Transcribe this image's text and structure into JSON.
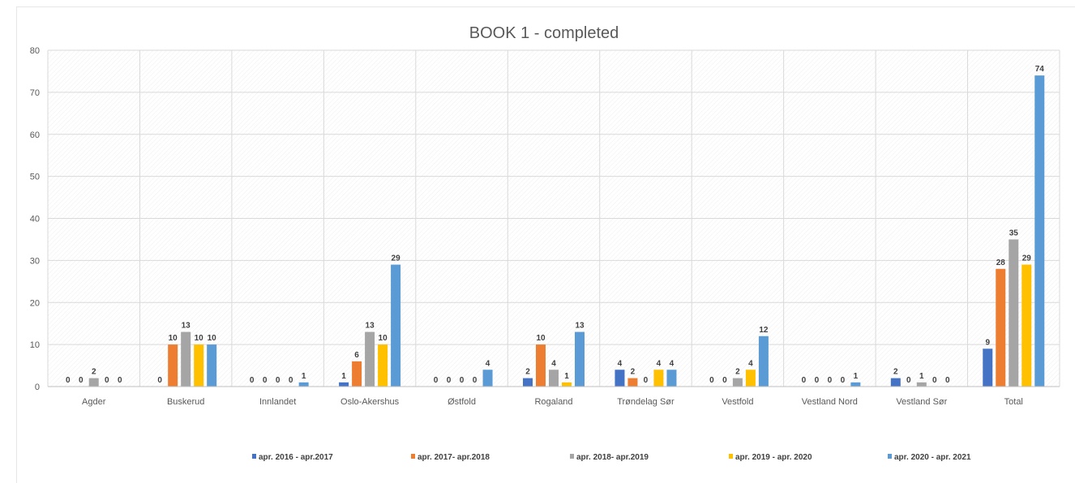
{
  "chart_data": {
    "type": "bar",
    "title": "BOOK 1 - completed",
    "xlabel": "",
    "ylabel": "",
    "ylim": [
      0,
      80
    ],
    "yticks": [
      0,
      10,
      20,
      30,
      40,
      50,
      60,
      70,
      80
    ],
    "grid": true,
    "legend_position": "bottom",
    "categories": [
      "Agder",
      "Buskerud",
      "Innlandet",
      "Oslo-Akershus",
      "Østfold",
      "Rogaland",
      "Trøndelag Sør",
      "Vestfold",
      "Vestland Nord",
      "Vestland Sør",
      "Total"
    ],
    "series": [
      {
        "name": "apr. 2016 - apr.2017",
        "color": "#4472C4",
        "values": [
          0,
          0,
          0,
          1,
          0,
          2,
          4,
          0,
          0,
          2,
          9
        ],
        "labels": [
          "0",
          "0",
          "0",
          "1",
          "0",
          "2",
          "4",
          "0",
          "0",
          "2",
          "9"
        ]
      },
      {
        "name": "apr. 2017- apr.2018",
        "color": "#ED7D31",
        "values": [
          0,
          10,
          0,
          6,
          0,
          10,
          2,
          0,
          0,
          0,
          28
        ],
        "labels": [
          "0",
          "10",
          "0",
          "6",
          "0",
          "10",
          "2",
          "0",
          "0",
          "0",
          "28"
        ]
      },
      {
        "name": "apr. 2018- apr.2019",
        "color": "#A5A5A5",
        "values": [
          2,
          13,
          0,
          13,
          0,
          4,
          0,
          2,
          0,
          1,
          35
        ],
        "labels": [
          "2",
          "13",
          "0",
          "13",
          "0",
          "4",
          "0",
          "2",
          "0",
          "1",
          "35"
        ]
      },
      {
        "name": "apr. 2019 - apr. 2020",
        "color": "#FFC000",
        "values": [
          0,
          10,
          0,
          10,
          0,
          1,
          4,
          4,
          0,
          0,
          29
        ],
        "labels": [
          "0",
          "10",
          "0",
          "10",
          "0",
          "1",
          "4",
          "4",
          "0",
          "0",
          "29"
        ]
      },
      {
        "name": "apr. 2020 - apr. 2021",
        "color": "#5B9BD5",
        "values": [
          0,
          10,
          1,
          29,
          4,
          13,
          4,
          12,
          1,
          0,
          74
        ],
        "labels": [
          "0",
          "10",
          "1",
          "29",
          "4",
          "13",
          "4",
          "12",
          "1",
          "0",
          "74"
        ]
      }
    ]
  }
}
